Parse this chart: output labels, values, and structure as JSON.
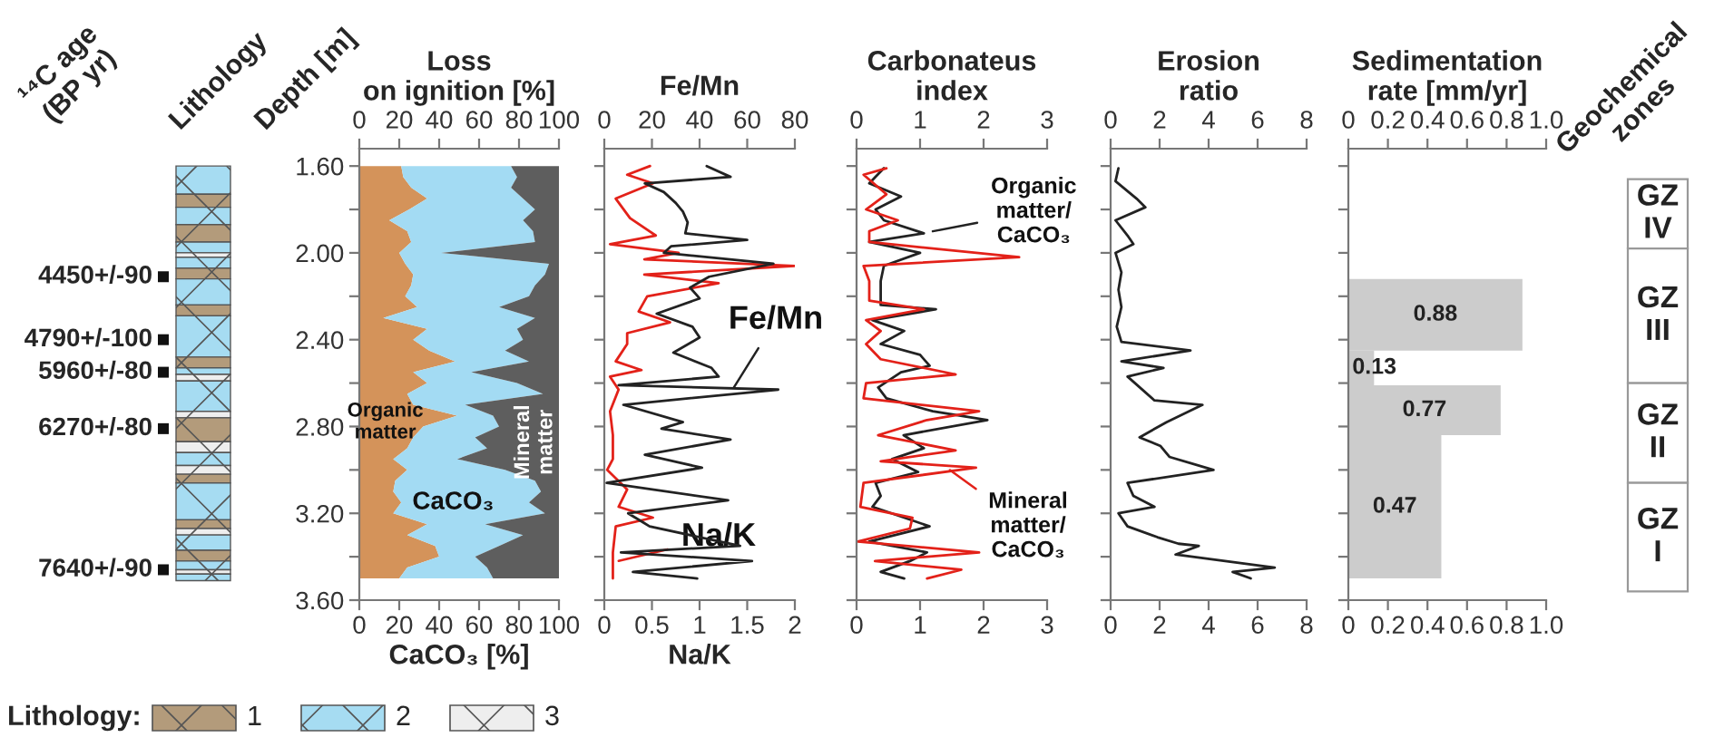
{
  "chart_data": [
    {
      "type": "other",
      "title": "Lithology",
      "annotations": [
        "¹⁴C age\n(BP yr)",
        "4450+/-90",
        "4790+/-100",
        "5960+/-80",
        "6270+/-80",
        "7640+/-90",
        "Lithology:",
        "1",
        "2",
        "3"
      ]
    },
    {
      "type": "area",
      "title": "Loss\non ignition [%]",
      "xlabel": "CaCO₃ [%]",
      "ylabel": "Depth [m]",
      "orientation": "horizontal",
      "stacked": true,
      "x": [
        1.6,
        1.65,
        1.7,
        1.75,
        1.8,
        1.85,
        1.9,
        1.95,
        2.0,
        2.05,
        2.1,
        2.15,
        2.2,
        2.25,
        2.3,
        2.35,
        2.4,
        2.45,
        2.5,
        2.55,
        2.6,
        2.65,
        2.7,
        2.75,
        2.8,
        2.85,
        2.9,
        2.95,
        3.0,
        3.05,
        3.1,
        3.15,
        3.2,
        3.25,
        3.3,
        3.35,
        3.4,
        3.45,
        3.5
      ],
      "xlim": [
        0,
        100
      ],
      "xticks": [
        0,
        20,
        40,
        60,
        80,
        100
      ],
      "x2lim": [
        0,
        100
      ],
      "x2ticks": [
        0,
        20,
        40,
        60,
        80,
        100
      ],
      "ylim": [
        3.6,
        1.52
      ],
      "yticks": [
        {
          "value": 1.6,
          "label": "1.60"
        },
        {
          "value": 1.8,
          "label": null
        },
        {
          "value": 2.0,
          "label": "2.00"
        },
        {
          "value": 2.2,
          "label": null
        },
        {
          "value": 2.4,
          "label": "2.40"
        },
        {
          "value": 2.6,
          "label": null
        },
        {
          "value": 2.8,
          "label": "2.80"
        },
        {
          "value": 3.0,
          "label": null
        },
        {
          "value": 3.2,
          "label": "3.20"
        },
        {
          "value": 3.4,
          "label": null
        },
        {
          "value": 3.6,
          "label": "3.60"
        }
      ],
      "series": [
        {
          "name": "Organic\nmatter",
          "color": "#d4935a",
          "values": [
            21,
            22,
            26,
            34,
            25,
            15,
            24,
            26,
            20,
            23,
            27,
            26,
            23,
            29,
            12,
            34,
            27,
            35,
            48,
            27,
            34,
            24,
            27,
            49,
            32,
            27,
            24,
            17,
            24,
            18,
            17,
            21,
            17,
            34,
            24,
            38,
            40,
            24,
            20
          ]
        },
        {
          "name": "CaCO₃",
          "color": "#a3dbf3",
          "values": [
            55,
            57,
            50,
            48,
            63,
            67,
            63,
            62,
            21,
            72,
            66,
            62,
            62,
            41,
            76,
            45,
            55,
            38,
            37,
            29,
            45,
            68,
            26,
            18,
            38,
            31,
            40,
            32,
            49,
            70,
            74,
            64,
            76,
            29,
            58,
            32,
            18,
            40,
            47
          ]
        },
        {
          "name": "Mineral\nmatter",
          "color": "#5e5e5e",
          "values": [
            24,
            21,
            24,
            18,
            12,
            18,
            13,
            12,
            59,
            5,
            7,
            12,
            15,
            30,
            12,
            21,
            18,
            27,
            15,
            44,
            21,
            8,
            47,
            33,
            30,
            42,
            36,
            51,
            27,
            12,
            9,
            15,
            7,
            37,
            18,
            30,
            42,
            36,
            33
          ]
        }
      ]
    },
    {
      "type": "line",
      "x2label": "Fe/Mn",
      "xlabel": "Na/K",
      "orientation": "horizontal",
      "tick_labels": "x",
      "xlim": [
        0,
        2
      ],
      "xticks": [
        0,
        0.5,
        1,
        1.5,
        2
      ],
      "x2lim": [
        0,
        80
      ],
      "x2ticks": [
        0,
        20,
        40,
        60,
        80
      ],
      "ylim": [
        3.6,
        1.52
      ],
      "yticks": [
        {
          "value": 1.6,
          "label": null
        },
        {
          "value": 1.8,
          "label": null
        },
        {
          "value": 2.0,
          "label": null
        },
        {
          "value": 2.2,
          "label": null
        },
        {
          "value": 2.4,
          "label": null
        },
        {
          "value": 2.6,
          "label": null
        },
        {
          "value": 2.8,
          "label": null
        },
        {
          "value": 3.0,
          "label": null
        },
        {
          "value": 3.2,
          "label": null
        },
        {
          "value": 3.4,
          "label": null
        },
        {
          "value": 3.6,
          "label": null
        }
      ],
      "series": [
        {
          "name": "Fe/Mn",
          "color": "#222222",
          "axis": "x2",
          "x": [
            1.6,
            1.65,
            1.68,
            1.72,
            1.77,
            1.81,
            1.86,
            1.91,
            1.94,
            1.97,
            2.0,
            2.05,
            2.11,
            2.16,
            2.21,
            2.28,
            2.34,
            2.39,
            2.46,
            2.53,
            2.57,
            2.61,
            2.63,
            2.7,
            2.78,
            2.81,
            2.86,
            2.93,
            2.99,
            3.06,
            3.14,
            3.2,
            3.24,
            3.26,
            3.35,
            3.38,
            3.42,
            3.47,
            3.5
          ],
          "values": [
            43,
            53,
            17,
            25,
            30,
            33,
            35,
            34,
            60,
            28,
            25,
            71,
            44,
            36,
            40,
            22,
            37,
            40,
            29,
            45,
            48,
            6,
            73,
            8,
            33,
            24,
            53,
            17,
            41,
            1,
            52,
            10,
            16,
            19,
            57,
            7,
            62,
            12,
            39
          ]
        },
        {
          "name": "Na/K",
          "color": "#e32119",
          "x": [
            1.6,
            1.64,
            1.68,
            1.75,
            1.84,
            1.92,
            1.96,
            2.0,
            2.03,
            2.06,
            2.1,
            2.14,
            2.2,
            2.27,
            2.32,
            2.37,
            2.42,
            2.5,
            2.54,
            2.57,
            2.63,
            2.73,
            2.84,
            2.95,
            3.0,
            3.09,
            3.17,
            3.22,
            3.26,
            3.38,
            3.5
          ],
          "values": [
            0.48,
            0.24,
            0.51,
            0.12,
            0.27,
            0.54,
            0.06,
            0.78,
            0.42,
            2.0,
            0.42,
            1.2,
            0.45,
            0.36,
            0.69,
            0.24,
            0.24,
            0.12,
            0.39,
            0.06,
            0.15,
            0.06,
            0.09,
            0.09,
            0.03,
            0.24,
            0.15,
            0.51,
            0.12,
            0.09,
            0.09
          ]
        }
      ]
    },
    {
      "type": "line",
      "title": "Carbonateus\nindex",
      "orientation": "horizontal",
      "tick_labels": "x",
      "xlim": [
        0,
        3
      ],
      "xticks": [
        0,
        1,
        2,
        3
      ],
      "x2lim": [
        0,
        3
      ],
      "x2ticks": [
        0,
        1,
        2,
        3
      ],
      "ylim": [
        3.6,
        1.52
      ],
      "yticks": [
        {
          "value": 1.6,
          "label": null
        },
        {
          "value": 1.8,
          "label": null
        },
        {
          "value": 2.0,
          "label": null
        },
        {
          "value": 2.2,
          "label": null
        },
        {
          "value": 2.4,
          "label": null
        },
        {
          "value": 2.6,
          "label": null
        },
        {
          "value": 2.8,
          "label": null
        },
        {
          "value": 3.0,
          "label": null
        },
        {
          "value": 3.2,
          "label": null
        },
        {
          "value": 3.4,
          "label": null
        },
        {
          "value": 3.6,
          "label": null
        }
      ],
      "series": [
        {
          "name": "Organic\nmatter/\nCaCO₃",
          "color": "#222222",
          "x": [
            1.61,
            1.68,
            1.74,
            1.8,
            1.85,
            1.91,
            1.95,
            2.0,
            2.06,
            2.13,
            2.18,
            2.24,
            2.26,
            2.31,
            2.36,
            2.42,
            2.47,
            2.52,
            2.55,
            2.62,
            2.67,
            2.73,
            2.77,
            2.84,
            2.9,
            2.95,
            3.01,
            3.06,
            3.12,
            3.17,
            3.26,
            3.33,
            3.38,
            3.42,
            3.47,
            3.5
          ],
          "values": [
            0.43,
            0.2,
            0.7,
            0.3,
            0.43,
            1.06,
            0.2,
            1.0,
            0.43,
            0.38,
            0.38,
            0.38,
            1.25,
            0.25,
            0.75,
            0.38,
            1.0,
            1.15,
            0.7,
            0.34,
            0.47,
            1.2,
            2.06,
            0.74,
            1.06,
            0.56,
            0.97,
            0.3,
            0.38,
            0.25,
            1.15,
            0.2,
            1.11,
            0.84,
            0.38,
            0.75
          ]
        },
        {
          "name": "Mineral\nmatter/\nCaCO₃",
          "color": "#e32119",
          "x": [
            1.61,
            1.64,
            1.73,
            1.8,
            1.85,
            1.9,
            1.95,
            2.02,
            2.06,
            2.13,
            2.22,
            2.26,
            2.31,
            2.36,
            2.42,
            2.49,
            2.56,
            2.6,
            2.67,
            2.73,
            2.77,
            2.84,
            2.91,
            2.96,
            2.99,
            3.06,
            3.17,
            3.22,
            3.27,
            3.33,
            3.38,
            3.42,
            3.46,
            3.5
          ],
          "values": [
            0.47,
            0.11,
            0.47,
            0.15,
            0.65,
            0.2,
            0.2,
            2.56,
            0.11,
            0.2,
            0.2,
            1.06,
            0.15,
            0.38,
            0.15,
            0.38,
            1.56,
            0.15,
            0.11,
            1.93,
            1.11,
            0.34,
            1.56,
            0.38,
            1.88,
            0.11,
            0.06,
            0.88,
            0.84,
            0.02,
            1.93,
            0.29,
            1.65,
            1.11
          ]
        }
      ]
    },
    {
      "type": "line",
      "title": "Erosion\nratio",
      "orientation": "horizontal",
      "tick_labels": "x",
      "xlim": [
        0,
        8
      ],
      "xticks": [
        0,
        2,
        4,
        6,
        8
      ],
      "x2lim": [
        0,
        8
      ],
      "x2ticks": [
        0,
        2,
        4,
        6,
        8
      ],
      "ylim": [
        3.6,
        1.52
      ],
      "yticks": [
        {
          "value": 1.6,
          "label": null
        },
        {
          "value": 1.8,
          "label": null
        },
        {
          "value": 2.0,
          "label": null
        },
        {
          "value": 2.2,
          "label": null
        },
        {
          "value": 2.4,
          "label": null
        },
        {
          "value": 2.6,
          "label": null
        },
        {
          "value": 2.8,
          "label": null
        },
        {
          "value": 3.0,
          "label": null
        },
        {
          "value": 3.2,
          "label": null
        },
        {
          "value": 3.4,
          "label": null
        },
        {
          "value": 3.6,
          "label": null
        }
      ],
      "series": [
        {
          "color": "#222222",
          "x": [
            1.61,
            1.67,
            1.75,
            1.79,
            1.85,
            1.92,
            1.96,
            2.0,
            2.09,
            2.17,
            2.25,
            2.34,
            2.41,
            2.45,
            2.5,
            2.53,
            2.57,
            2.68,
            2.7,
            2.78,
            2.85,
            2.89,
            2.94,
            3.0,
            3.06,
            3.12,
            3.17,
            3.2,
            3.26,
            3.31,
            3.34,
            3.35,
            3.39,
            3.45,
            3.47,
            3.5
          ],
          "values": [
            0.32,
            0.2,
            1.06,
            1.42,
            0.2,
            0.69,
            0.93,
            0.2,
            0.44,
            0.32,
            0.44,
            0.25,
            0.44,
            3.26,
            0.44,
            2.16,
            0.69,
            1.79,
            3.75,
            2.28,
            1.18,
            2.04,
            2.4,
            4.2,
            0.69,
            0.93,
            1.79,
            0.32,
            0.69,
            1.91,
            2.77,
            3.6,
            2.65,
            6.7,
            4.98,
            5.72
          ]
        }
      ]
    },
    {
      "type": "histogram",
      "title": "Sedimentation\nrate [mm/yr]",
      "orientation": "horizontal",
      "tick_labels": "x",
      "color": "#cccccc",
      "data_labels": true,
      "bins": [
        2.12,
        2.45,
        2.61,
        2.84,
        3.5
      ],
      "values": [
        0.88,
        0.13,
        0.77,
        0.47
      ],
      "xlim": [
        0,
        1
      ],
      "xticks": [
        0,
        0.2,
        0.4,
        0.6,
        0.8,
        {
          "value": 1,
          "label": "1.0"
        }
      ],
      "x2lim": [
        0,
        1
      ],
      "x2ticks": [
        0,
        0.2,
        0.4,
        0.6,
        0.8,
        {
          "value": 1,
          "label": "1.0"
        }
      ],
      "ylim": [
        3.6,
        1.52
      ],
      "yticks": [
        {
          "value": 1.6,
          "label": null
        },
        {
          "value": 1.8,
          "label": null
        },
        {
          "value": 2.0,
          "label": null
        },
        {
          "value": 2.2,
          "label": null
        },
        {
          "value": 2.4,
          "label": null
        },
        {
          "value": 2.6,
          "label": null
        },
        {
          "value": 2.8,
          "label": null
        },
        {
          "value": 3.0,
          "label": null
        },
        {
          "value": 3.2,
          "label": null
        },
        {
          "value": 3.4,
          "label": null
        },
        {
          "value": 3.6,
          "label": null
        }
      ]
    },
    {
      "type": "other",
      "title": "Geochemical\nzones",
      "annotations": [
        "GZ\nIV",
        "GZ\nIII",
        "GZ\nII",
        "GZ\nI"
      ]
    }
  ]
}
